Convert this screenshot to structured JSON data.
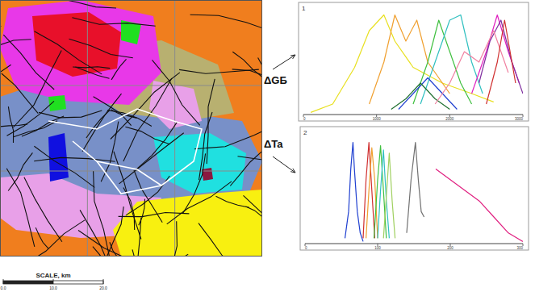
{
  "map": {
    "labels": [
      "ΔGБ",
      "ΔTa"
    ],
    "scale": {
      "title": "SCALE, km",
      "range": [
        0,
        20
      ],
      "ticks": [
        {
          "value": 0,
          "label": "0.0"
        },
        {
          "value": 10,
          "label": "10.0"
        },
        {
          "value": 20,
          "label": "20.0"
        }
      ]
    }
  },
  "chart_data": [
    {
      "type": "line",
      "label": "1",
      "xlim": [
        0,
        3000
      ],
      "ylim": [
        0,
        1
      ],
      "xticks": [
        0,
        1000,
        2000,
        3000
      ],
      "tick_labels": "x",
      "series": [
        {
          "color": "#e8e020",
          "x": [
            100,
            400,
            700,
            900,
            1100,
            1250,
            1500,
            1900,
            2300,
            2600
          ],
          "values": [
            0.02,
            0.1,
            0.45,
            0.8,
            0.95,
            0.7,
            0.45,
            0.3,
            0.2,
            0.12
          ]
        },
        {
          "color": "#f0a030",
          "x": [
            900,
            1100,
            1250,
            1400,
            1550,
            1700,
            2000
          ],
          "values": [
            0.1,
            0.5,
            0.95,
            0.7,
            0.9,
            0.5,
            0.2
          ]
        },
        {
          "color": "#40c040",
          "x": [
            1500,
            1700,
            1850,
            2000,
            2150,
            2300
          ],
          "values": [
            0.1,
            0.5,
            0.9,
            0.6,
            0.3,
            0.1
          ]
        },
        {
          "color": "#30c0c0",
          "x": [
            1600,
            1800,
            2000,
            2150,
            2300,
            2450
          ],
          "values": [
            0.1,
            0.5,
            0.9,
            0.95,
            0.5,
            0.2
          ]
        },
        {
          "color": "#2040d0",
          "x": [
            1300,
            1500,
            1700,
            1900,
            2100
          ],
          "values": [
            0.05,
            0.2,
            0.35,
            0.2,
            0.05
          ]
        },
        {
          "color": "#207030",
          "x": [
            1200,
            1400,
            1600,
            1800,
            2000
          ],
          "values": [
            0.05,
            0.15,
            0.3,
            0.15,
            0.05
          ]
        },
        {
          "color": "#e020c0",
          "x": [
            2300,
            2500,
            2650,
            2800,
            2950
          ],
          "values": [
            0.2,
            0.6,
            0.95,
            0.6,
            0.3
          ]
        },
        {
          "color": "#8030a0",
          "x": [
            2400,
            2550,
            2700,
            2850,
            3000
          ],
          "values": [
            0.3,
            0.7,
            0.9,
            0.5,
            0.2
          ]
        },
        {
          "color": "#f080a0",
          "x": [
            1800,
            2000,
            2200,
            2400,
            2600,
            2800
          ],
          "values": [
            0.1,
            0.3,
            0.6,
            0.5,
            0.8,
            0.4
          ]
        },
        {
          "color": "#d03030",
          "x": [
            2500,
            2650,
            2750,
            2900
          ],
          "values": [
            0.1,
            0.5,
            0.9,
            0.3
          ]
        }
      ]
    },
    {
      "type": "line",
      "label": "2",
      "xlim": [
        0,
        300
      ],
      "ylim": [
        0,
        1
      ],
      "xticks": [
        0,
        100,
        200,
        300
      ],
      "tick_labels": "x",
      "series": [
        {
          "color": "#2040d0",
          "x": [
            55,
            60,
            63,
            66,
            68,
            72,
            76,
            80
          ],
          "values": [
            0.05,
            0.3,
            0.7,
            0.95,
            0.7,
            0.3,
            0.1,
            0.02
          ]
        },
        {
          "color": "#d03030",
          "x": [
            80,
            84,
            88,
            92,
            96
          ],
          "values": [
            0.05,
            0.6,
            0.95,
            0.5,
            0.05
          ]
        },
        {
          "color": "#f0a030",
          "x": [
            84,
            88,
            92,
            96,
            100
          ],
          "values": [
            0.05,
            0.5,
            0.9,
            0.6,
            0.05
          ]
        },
        {
          "color": "#40c040",
          "x": [
            95,
            100,
            104,
            108,
            112
          ],
          "values": [
            0.05,
            0.6,
            0.92,
            0.5,
            0.05
          ]
        },
        {
          "color": "#30c0c0",
          "x": [
            100,
            104,
            108,
            112,
            116
          ],
          "values": [
            0.05,
            0.5,
            0.88,
            0.4,
            0.05
          ]
        },
        {
          "color": "#a0d060",
          "x": [
            108,
            112,
            116,
            120,
            124
          ],
          "values": [
            0.05,
            0.45,
            0.85,
            0.4,
            0.05
          ]
        },
        {
          "color": "#707070",
          "x": [
            140,
            146,
            152,
            156,
            160,
            164
          ],
          "values": [
            0.1,
            0.6,
            0.95,
            0.6,
            0.3,
            0.25
          ]
        },
        {
          "color": "#e02080",
          "x": [
            180,
            200,
            220,
            240,
            260,
            280,
            300
          ],
          "values": [
            0.7,
            0.6,
            0.5,
            0.4,
            0.25,
            0.1,
            0.02
          ]
        }
      ]
    }
  ]
}
